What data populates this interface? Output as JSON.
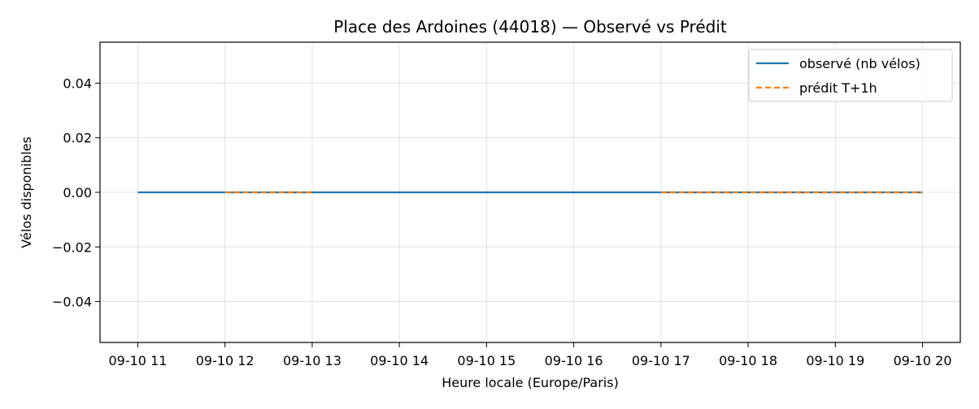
{
  "chart_data": {
    "type": "line",
    "title": "Place des Ardoines (44018) — Observé vs Prédit",
    "xlabel": "Heure locale (Europe/Paris)",
    "ylabel": "Vélos disponibles",
    "x_tick_labels": [
      "09-10 11",
      "09-10 12",
      "09-10 13",
      "09-10 14",
      "09-10 15",
      "09-10 16",
      "09-10 17",
      "09-10 18",
      "09-10 19",
      "09-10 20"
    ],
    "y_tick_labels": [
      "−0.04",
      "−0.02",
      "0.00",
      "0.02",
      "0.04"
    ],
    "y_ticks": [
      -0.04,
      -0.02,
      0.0,
      0.02,
      0.04
    ],
    "ylim": [
      -0.055,
      0.055
    ],
    "xlim": [
      "09-10 10:34",
      "09-10 20:26"
    ],
    "grid": true,
    "legend_position": "top-right",
    "series": [
      {
        "name": "observé (nb vélos)",
        "style": "solid",
        "color": "#1f77b4",
        "segments": [
          {
            "x": [
              "09-10 11:00",
              "09-10 20:00"
            ],
            "y": [
              0,
              0
            ]
          }
        ]
      },
      {
        "name": "prédit T+1h",
        "style": "dashed",
        "color": "#ff7f0e",
        "segments": [
          {
            "x": [
              "09-10 12:00",
              "09-10 13:00"
            ],
            "y": [
              0,
              0
            ]
          },
          {
            "x": [
              "09-10 17:00",
              "09-10 20:00"
            ],
            "y": [
              0,
              0
            ]
          }
        ]
      }
    ]
  }
}
